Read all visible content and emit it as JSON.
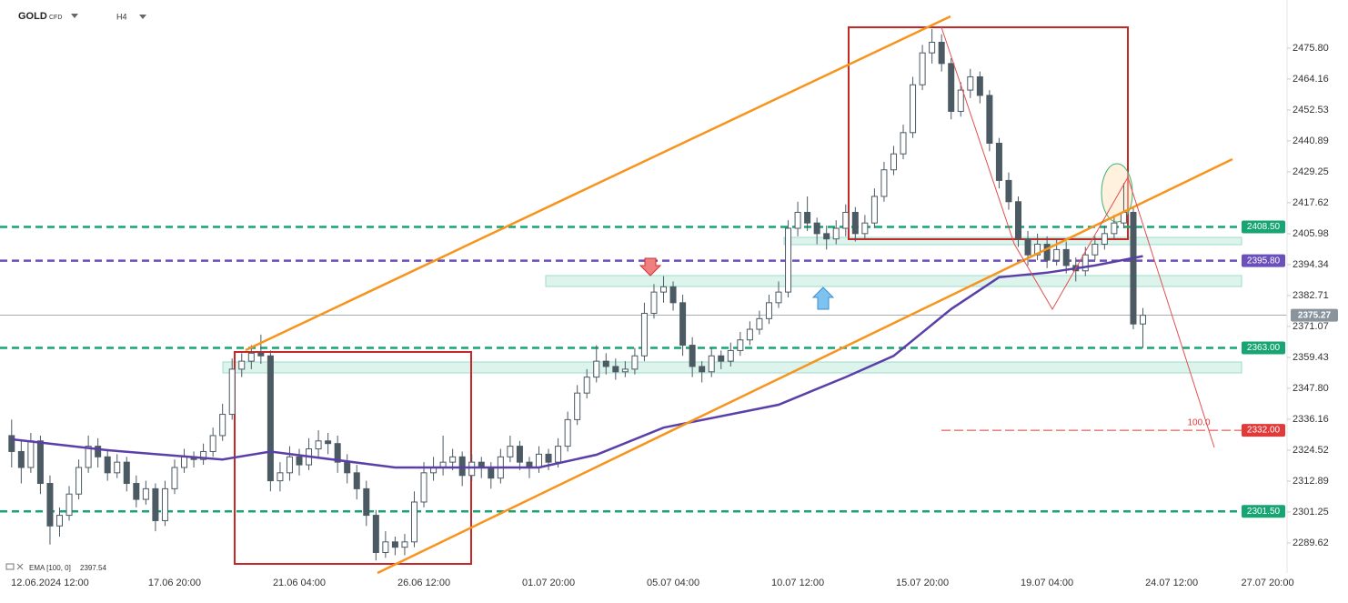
{
  "chart_data": {
    "type": "candlestick",
    "symbol": "GOLD",
    "symbol_tag": "CFD",
    "timeframe": "H4",
    "ylim": [
      2278.3,
      2493.9
    ],
    "yticks": [
      {
        "value": 2475.8,
        "label": "2475.80"
      },
      2464.16,
      2452.53,
      2440.89,
      2429.25,
      2417.62,
      2405.98,
      2394.34,
      2382.71,
      2371.07,
      2359.43,
      {
        "value": 2347.8,
        "label": "2347.80"
      },
      2336.16,
      2324.52,
      2312.89,
      2301.25,
      2289.62
    ],
    "categories": [
      null,
      null,
      null,
      null,
      "12.06.2024 12:00",
      null,
      null,
      null,
      null,
      null,
      null,
      null,
      null,
      null,
      null,
      null,
      null,
      "17.06 20:00",
      null,
      null,
      null,
      null,
      null,
      null,
      null,
      null,
      null,
      null,
      null,
      null,
      "21.06 04:00",
      null,
      null,
      null,
      null,
      null,
      null,
      null,
      null,
      null,
      null,
      null,
      null,
      "26.06 12:00",
      null,
      null,
      null,
      null,
      null,
      null,
      null,
      null,
      null,
      null,
      null,
      null,
      "01.07 20:00",
      null,
      null,
      null,
      null,
      null,
      null,
      null,
      null,
      null,
      null,
      null,
      null,
      "05.07 04:00",
      null,
      null,
      null,
      null,
      null,
      null,
      null,
      null,
      null,
      null,
      null,
      null,
      "10.07 12:00",
      null,
      null,
      null,
      null,
      null,
      null,
      null,
      null,
      null,
      null,
      null,
      null,
      "15.07 20:00",
      null,
      null,
      null,
      null,
      null,
      null,
      null,
      null,
      null,
      null,
      null,
      null,
      "19.07 04:00",
      null,
      null,
      null,
      null,
      null,
      null,
      null,
      null,
      null,
      null,
      null,
      null,
      "24.07 12:00",
      null,
      null,
      null,
      null,
      null,
      null,
      null,
      null,
      null,
      "27.07 20:00",
      null
    ],
    "up_color": "#ffffff",
    "down_color": "#4b5a63",
    "ohlc": [
      [
        2330,
        2336,
        2318,
        2324
      ],
      [
        2324,
        2328,
        2312,
        2318
      ],
      [
        2318,
        2331,
        2316,
        2328
      ],
      [
        2328,
        2330,
        2308,
        2312
      ],
      [
        2312,
        2315,
        2289,
        2296
      ],
      [
        2296,
        2303,
        2292,
        2300
      ],
      [
        2300,
        2311,
        2298,
        2308
      ],
      [
        2308,
        2321,
        2306,
        2318
      ],
      [
        2318,
        2330,
        2316,
        2326
      ],
      [
        2326,
        2329,
        2318,
        2322
      ],
      [
        2322,
        2325,
        2313,
        2316
      ],
      [
        2316,
        2323,
        2314,
        2320
      ],
      [
        2320,
        2322,
        2309,
        2312
      ],
      [
        2312,
        2315,
        2303,
        2306
      ],
      [
        2306,
        2313,
        2304,
        2310
      ],
      [
        2310,
        2312,
        2294,
        2298
      ],
      [
        2298,
        2313,
        2296,
        2310
      ],
      [
        2310,
        2321,
        2308,
        2318
      ],
      [
        2318,
        2325,
        2316,
        2322
      ],
      [
        2322,
        2324,
        2318,
        2321
      ],
      [
        2321,
        2327,
        2319,
        2324
      ],
      [
        2324,
        2333,
        2322,
        2330
      ],
      [
        2330,
        2342,
        2328,
        2338
      ],
      [
        2338,
        2359,
        2336,
        2355
      ],
      [
        2355,
        2361,
        2352,
        2358
      ],
      [
        2358,
        2364,
        2355,
        2361
      ],
      [
        2361,
        2368,
        2357,
        2360
      ],
      [
        2360,
        2362,
        2309,
        2313
      ],
      [
        2313,
        2320,
        2309,
        2316
      ],
      [
        2316,
        2326,
        2313,
        2322
      ],
      [
        2322,
        2325,
        2315,
        2319
      ],
      [
        2319,
        2329,
        2317,
        2325
      ],
      [
        2325,
        2332,
        2322,
        2328
      ],
      [
        2328,
        2331,
        2323,
        2327
      ],
      [
        2327,
        2330,
        2316,
        2320
      ],
      [
        2320,
        2323,
        2312,
        2316
      ],
      [
        2316,
        2319,
        2306,
        2310
      ],
      [
        2310,
        2313,
        2296,
        2300
      ],
      [
        2300,
        2302,
        2283,
        2286
      ],
      [
        2286,
        2294,
        2284,
        2290
      ],
      [
        2290,
        2292,
        2285,
        2288
      ],
      [
        2288,
        2293,
        2285,
        2290
      ],
      [
        2290,
        2309,
        2288,
        2305
      ],
      [
        2305,
        2320,
        2303,
        2316
      ],
      [
        2316,
        2322,
        2313,
        2318
      ],
      [
        2318,
        2330,
        2315,
        2320
      ],
      [
        2320,
        2325,
        2317,
        2322
      ],
      [
        2322,
        2324,
        2311,
        2315
      ],
      [
        2315,
        2323,
        2313,
        2320
      ],
      [
        2320,
        2322,
        2314,
        2318
      ],
      [
        2318,
        2320,
        2310,
        2314
      ],
      [
        2314,
        2325,
        2312,
        2322
      ],
      [
        2322,
        2330,
        2320,
        2326
      ],
      [
        2326,
        2328,
        2317,
        2320
      ],
      [
        2320,
        2322,
        2314,
        2318
      ],
      [
        2318,
        2326,
        2316,
        2323
      ],
      [
        2323,
        2325,
        2317,
        2320
      ],
      [
        2320,
        2329,
        2318,
        2326
      ],
      [
        2326,
        2339,
        2324,
        2336
      ],
      [
        2336,
        2349,
        2334,
        2346
      ],
      [
        2346,
        2355,
        2344,
        2352
      ],
      [
        2352,
        2364,
        2350,
        2358
      ],
      [
        2358,
        2361,
        2353,
        2356
      ],
      [
        2356,
        2359,
        2351,
        2354
      ],
      [
        2354,
        2358,
        2352,
        2355
      ],
      [
        2355,
        2363,
        2353,
        2360
      ],
      [
        2360,
        2380,
        2358,
        2376
      ],
      [
        2376,
        2387,
        2374,
        2384
      ],
      [
        2384,
        2390,
        2380,
        2386
      ],
      [
        2386,
        2388,
        2377,
        2380
      ],
      [
        2380,
        2383,
        2360,
        2364
      ],
      [
        2364,
        2367,
        2352,
        2356
      ],
      [
        2356,
        2358,
        2350,
        2354
      ],
      [
        2354,
        2363,
        2352,
        2360
      ],
      [
        2360,
        2362,
        2355,
        2358
      ],
      [
        2358,
        2365,
        2356,
        2362
      ],
      [
        2362,
        2369,
        2360,
        2366
      ],
      [
        2366,
        2373,
        2364,
        2370
      ],
      [
        2370,
        2377,
        2368,
        2374
      ],
      [
        2374,
        2383,
        2372,
        2380
      ],
      [
        2380,
        2388,
        2378,
        2384
      ],
      [
        2384,
        2411,
        2382,
        2408
      ],
      [
        2408,
        2418,
        2405,
        2414
      ],
      [
        2414,
        2420,
        2407,
        2410
      ],
      [
        2410,
        2412,
        2402,
        2406
      ],
      [
        2406,
        2409,
        2400,
        2404
      ],
      [
        2404,
        2411,
        2402,
        2408
      ],
      [
        2408,
        2417,
        2405,
        2414
      ],
      [
        2414,
        2416,
        2403,
        2406
      ],
      [
        2406,
        2413,
        2404,
        2410
      ],
      [
        2410,
        2423,
        2408,
        2420
      ],
      [
        2420,
        2433,
        2418,
        2430
      ],
      [
        2430,
        2439,
        2428,
        2436
      ],
      [
        2436,
        2447,
        2434,
        2444
      ],
      [
        2444,
        2465,
        2442,
        2462
      ],
      [
        2462,
        2477,
        2460,
        2474
      ],
      [
        2474,
        2483,
        2470,
        2478
      ],
      [
        2478,
        2481,
        2467,
        2470
      ],
      [
        2470,
        2472,
        2449,
        2452
      ],
      [
        2452,
        2463,
        2450,
        2460
      ],
      [
        2460,
        2468,
        2457,
        2465
      ],
      [
        2465,
        2467,
        2455,
        2458
      ],
      [
        2458,
        2460,
        2437,
        2440
      ],
      [
        2440,
        2442,
        2423,
        2426
      ],
      [
        2426,
        2429,
        2415,
        2418
      ],
      [
        2418,
        2420,
        2401,
        2404
      ],
      [
        2404,
        2407,
        2394,
        2398
      ],
      [
        2398,
        2406,
        2396,
        2402
      ],
      [
        2402,
        2405,
        2393,
        2396
      ],
      [
        2396,
        2404,
        2394,
        2400
      ],
      [
        2400,
        2403,
        2391,
        2394
      ],
      [
        2394,
        2397,
        2388,
        2392
      ],
      [
        2392,
        2401,
        2390,
        2398
      ],
      [
        2398,
        2405,
        2396,
        2402
      ],
      [
        2402,
        2409,
        2400,
        2406
      ],
      [
        2406,
        2413,
        2404,
        2410
      ],
      [
        2410,
        2425,
        2408,
        2414
      ],
      [
        2414,
        2416,
        2370,
        2372
      ],
      [
        2372,
        2378,
        2363,
        2375.27
      ],
      null,
      null,
      null,
      null,
      null,
      null,
      null,
      null,
      null,
      null,
      null,
      null,
      null,
      null
    ],
    "indicator": {
      "label": "EMA [100, 0]",
      "value": 2397.54,
      "color": "#5b3fa8",
      "x": [
        0,
        10,
        22,
        27,
        40,
        55,
        61,
        68,
        80,
        87,
        92,
        98,
        103,
        108,
        113,
        118
      ],
      "values": [
        2328.6,
        2324.5,
        2321,
        2324,
        2318,
        2318,
        2322.8,
        2333,
        2341.6,
        2352,
        2360,
        2377.6,
        2389.6,
        2391.3,
        2394,
        2397.54
      ]
    },
    "levels": [
      {
        "value": 2408.5,
        "label": "2408.50",
        "color": "#17a673"
      },
      {
        "value": 2395.8,
        "label": "2395.80",
        "color": "#6b4fbb"
      },
      {
        "value": 2363,
        "label": "2363.00",
        "color": "#17a673"
      },
      {
        "value": 2301.5,
        "label": "2301.50",
        "color": "#17a673"
      }
    ],
    "target": {
      "value": 2332,
      "label": "2332.00",
      "ratio_label": "100.0",
      "color": "#e03a3a"
    },
    "last_price": {
      "value": 2375.27,
      "color": "#8a949c"
    }
  }
}
